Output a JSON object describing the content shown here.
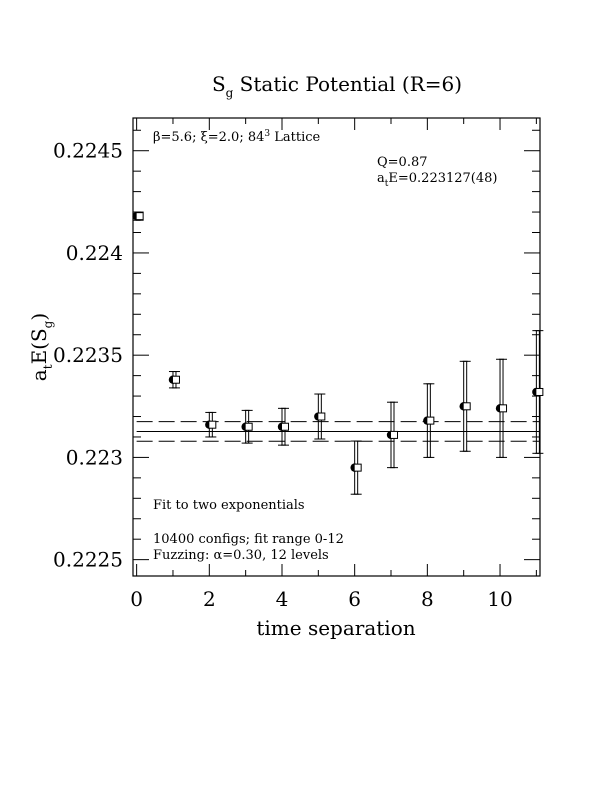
{
  "chart_data": {
    "type": "scatter",
    "title_main": "S",
    "title_sub": "g",
    "title_rest": " Static Potential (R=6)",
    "xlabel": "time separation",
    "ylabel_main": "a",
    "ylabel_sub1": "t",
    "ylabel_mid": "E(S",
    "ylabel_sub2": "g",
    "ylabel_end": ")",
    "xlim": [
      -0.1,
      11.1
    ],
    "ylim": [
      0.22242,
      0.22466
    ],
    "x_ticks": [
      0,
      2,
      4,
      6,
      8,
      10
    ],
    "x_tick_labels": [
      "0",
      "2",
      "4",
      "6",
      "8",
      "10"
    ],
    "y_ticks": [
      0.2225,
      0.223,
      0.2235,
      0.224,
      0.2245
    ],
    "y_tick_labels": [
      "0.2225",
      "0.223",
      "0.2235",
      "0.224",
      "0.2245"
    ],
    "annotations": {
      "lattice_pre": "β=5.6; ξ=2.0; 84",
      "lattice_sup": "3",
      "lattice_post": " Lattice",
      "q": "Q=0.87",
      "energy_pre": "a",
      "energy_sub": "t",
      "energy_post": "E=0.223127(48)",
      "fit": "Fit to two exponentials",
      "configs": "10400 configs; fit range 0-12",
      "fuzzing": "Fuzzing: α=0.30, 12 levels"
    },
    "fit": {
      "value": 0.223127,
      "error": 4.8e-05,
      "x_range": [
        0,
        12
      ]
    },
    "series": [
      {
        "marker": "filled-circle",
        "points": [
          {
            "x": 0,
            "y": 0.22418,
            "err": 2e-05
          },
          {
            "x": 1,
            "y": 0.22338,
            "err": 4e-05
          },
          {
            "x": 2,
            "y": 0.22316,
            "err": 6e-05
          },
          {
            "x": 3,
            "y": 0.22315,
            "err": 8e-05
          },
          {
            "x": 4,
            "y": 0.22315,
            "err": 9e-05
          },
          {
            "x": 5,
            "y": 0.2232,
            "err": 0.00011
          },
          {
            "x": 6,
            "y": 0.22295,
            "err": 0.00013
          },
          {
            "x": 7,
            "y": 0.22311,
            "err": 0.00016
          },
          {
            "x": 8,
            "y": 0.22318,
            "err": 0.00018
          },
          {
            "x": 9,
            "y": 0.22325,
            "err": 0.00022
          },
          {
            "x": 10,
            "y": 0.22324,
            "err": 0.00024
          },
          {
            "x": 11,
            "y": 0.22332,
            "err": 0.0003
          }
        ]
      },
      {
        "marker": "open-square",
        "points": [
          {
            "x": 0,
            "y": 0.22418,
            "err": 2e-05
          },
          {
            "x": 1,
            "y": 0.22338,
            "err": 4e-05
          },
          {
            "x": 2,
            "y": 0.22316,
            "err": 6e-05
          },
          {
            "x": 3,
            "y": 0.22315,
            "err": 8e-05
          },
          {
            "x": 4,
            "y": 0.22315,
            "err": 9e-05
          },
          {
            "x": 5,
            "y": 0.2232,
            "err": 0.00011
          },
          {
            "x": 6,
            "y": 0.22295,
            "err": 0.00013
          },
          {
            "x": 7,
            "y": 0.22311,
            "err": 0.00016
          },
          {
            "x": 8,
            "y": 0.22318,
            "err": 0.00018
          },
          {
            "x": 9,
            "y": 0.22325,
            "err": 0.00022
          },
          {
            "x": 10,
            "y": 0.22324,
            "err": 0.00024
          },
          {
            "x": 11,
            "y": 0.22332,
            "err": 0.0003
          }
        ]
      }
    ]
  }
}
